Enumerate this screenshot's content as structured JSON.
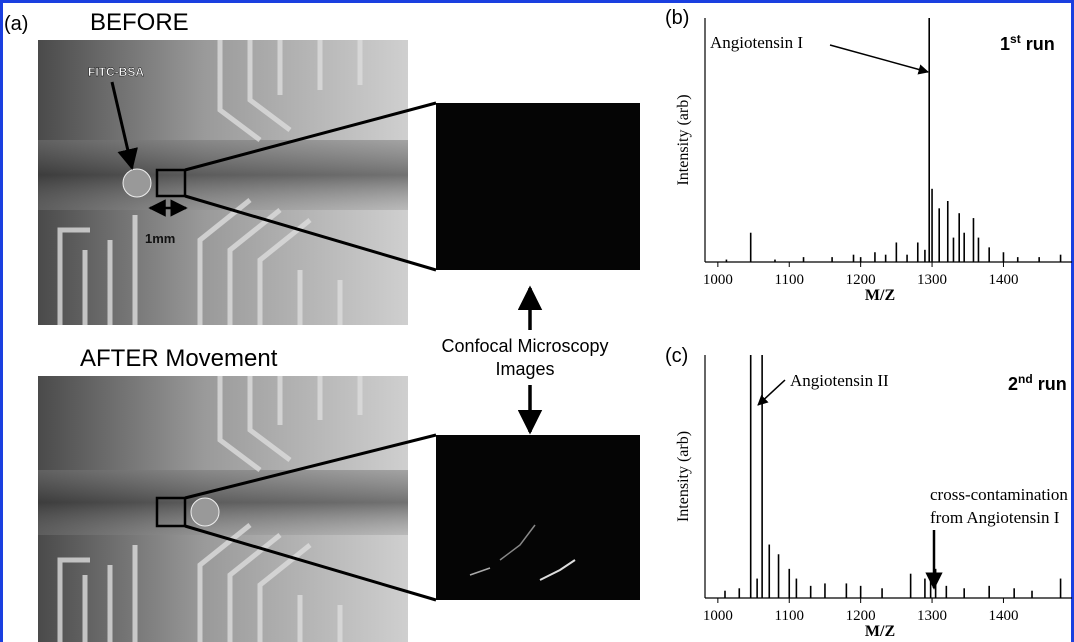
{
  "panel_a": {
    "label": "(a)",
    "before": "BEFORE",
    "after": "AFTER Movement",
    "marker": "FITC-BSA",
    "scale": "1mm",
    "confocal": [
      "Confocal Microscopy",
      "Images"
    ]
  },
  "chart_data": [
    {
      "type": "spectrum",
      "panel_label": "(b)",
      "ylabel": "Intensity (arb)",
      "xlabel": "M/Z",
      "color": "#000000",
      "annotations": [
        "Angiotensin I",
        "1st run"
      ],
      "xlim": [
        982,
        1496
      ],
      "ylim": [
        0,
        100
      ],
      "xticks": [
        1000,
        1100,
        1200,
        1300,
        1400
      ],
      "x": [
        1012,
        1046,
        1080,
        1120,
        1160,
        1190,
        1200,
        1220,
        1235,
        1250,
        1265,
        1280,
        1290,
        1296,
        1300,
        1310,
        1322,
        1330,
        1338,
        1345,
        1358,
        1365,
        1380,
        1400,
        1420,
        1450,
        1480
      ],
      "values": [
        1,
        12,
        1,
        2,
        2,
        3,
        2,
        4,
        3,
        8,
        3,
        8,
        5,
        100,
        30,
        22,
        25,
        10,
        20,
        12,
        18,
        10,
        6,
        4,
        2,
        2,
        3
      ]
    },
    {
      "type": "spectrum",
      "panel_label": "(c)",
      "ylabel": "Intensity (arb)",
      "xlabel": "M/Z",
      "color": "#000000",
      "annotations": [
        "Angiotensin II",
        "2nd run",
        "cross-contamination",
        "from Angiotensin I"
      ],
      "xlim": [
        982,
        1496
      ],
      "ylim": [
        0,
        100
      ],
      "xticks": [
        1000,
        1100,
        1200,
        1300,
        1400
      ],
      "x": [
        1010,
        1030,
        1046,
        1055,
        1062,
        1072,
        1085,
        1100,
        1110,
        1130,
        1150,
        1180,
        1200,
        1230,
        1270,
        1290,
        1298,
        1305,
        1320,
        1345,
        1380,
        1415,
        1440,
        1480
      ],
      "values": [
        3,
        4,
        100,
        8,
        100,
        22,
        18,
        12,
        8,
        5,
        6,
        6,
        5,
        4,
        10,
        8,
        10,
        12,
        5,
        4,
        5,
        4,
        3,
        8
      ]
    }
  ]
}
